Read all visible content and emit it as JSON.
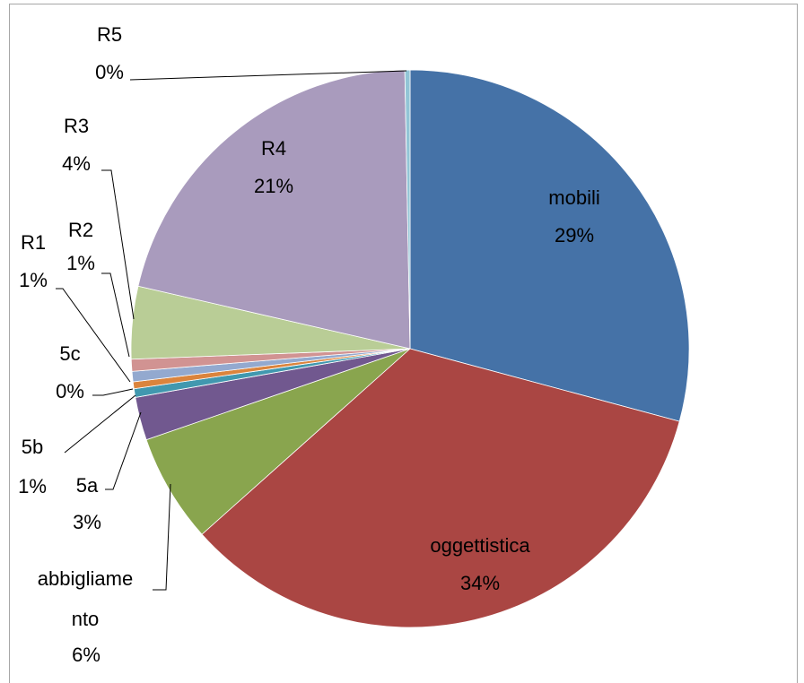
{
  "chart_data": {
    "type": "pie",
    "categories": [
      "mobili",
      "oggettistica",
      "abbigliamento",
      "5a",
      "5b",
      "5c",
      "R1",
      "R2",
      "R3",
      "R4",
      "R5"
    ],
    "values": [
      29.2,
      34.2,
      6.3,
      2.5,
      0.5,
      0.4,
      0.6,
      0.7,
      4.2,
      21.1,
      0.3
    ],
    "value_labels": [
      "29%",
      "34%",
      "6%",
      "3%",
      "1%",
      "0%",
      "1%",
      "1%",
      "4%",
      "21%",
      "0%"
    ],
    "colors": [
      "#4572a7",
      "#aa4643",
      "#89a54e",
      "#71588f",
      "#4198af",
      "#db843d",
      "#93a9cf",
      "#d19392",
      "#b9cd96",
      "#a99bbd",
      "#92c5d6"
    ]
  }
}
